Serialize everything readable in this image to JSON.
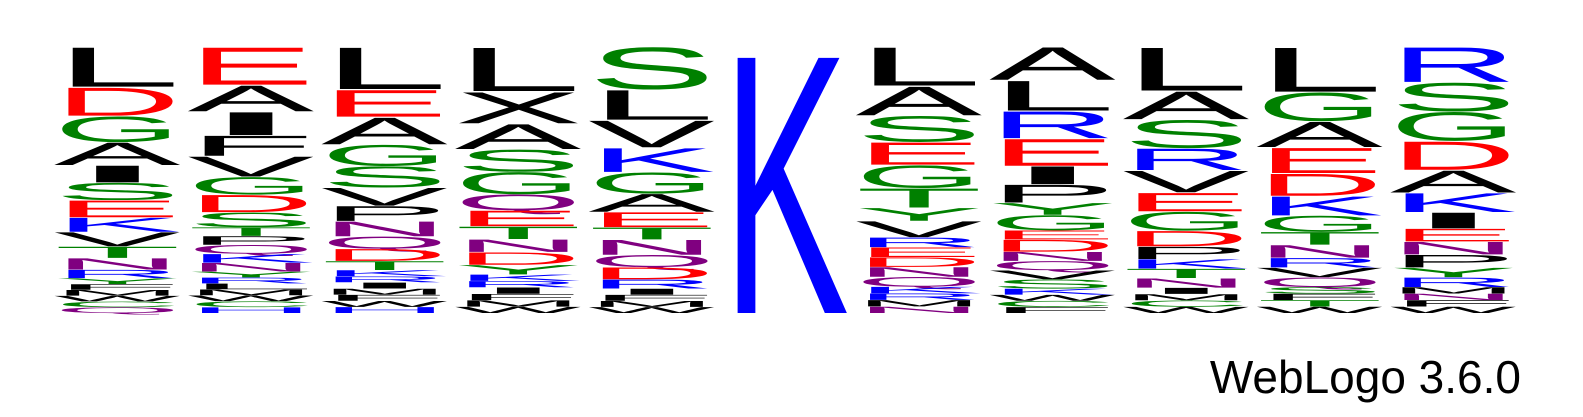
{
  "chart_data": {
    "type": "sequence_logo",
    "colors": {
      "L": "#000000",
      "A": "#000000",
      "V": "#000000",
      "I": "#000000",
      "M": "#000000",
      "F": "#000000",
      "W": "#000000",
      "P": "#000000",
      "D": "#ff0000",
      "E": "#ff0000",
      "G": "#008000",
      "S": "#008000",
      "T": "#008000",
      "Y": "#008000",
      "C": "#008000",
      "K": "#0000ff",
      "R": "#0000ff",
      "H": "#0000ff",
      "N": "#800080",
      "Q": "#800080"
    },
    "positions": [
      [
        [
          "L",
          14
        ],
        [
          "D",
          10
        ],
        [
          "G",
          9
        ],
        [
          "A",
          8
        ],
        [
          "I",
          6
        ],
        [
          "S",
          6
        ],
        [
          "E",
          6
        ],
        [
          "K",
          5
        ],
        [
          "V",
          5
        ],
        [
          "T",
          4
        ],
        [
          "N",
          4
        ],
        [
          "R",
          3
        ],
        [
          "Y",
          2
        ],
        [
          "F",
          2
        ],
        [
          "M",
          2
        ],
        [
          "W",
          2
        ],
        [
          "C",
          2
        ],
        [
          "Q",
          2
        ]
      ],
      [
        [
          "E",
          13
        ],
        [
          "A",
          9
        ],
        [
          "I",
          8
        ],
        [
          "F",
          7
        ],
        [
          "V",
          7
        ],
        [
          "G",
          6
        ],
        [
          "D",
          6
        ],
        [
          "S",
          5
        ],
        [
          "T",
          3
        ],
        [
          "P",
          3
        ],
        [
          "Q",
          3
        ],
        [
          "K",
          3
        ],
        [
          "N",
          3
        ],
        [
          "Y",
          2
        ],
        [
          "R",
          2
        ],
        [
          "L",
          2
        ],
        [
          "M",
          2
        ],
        [
          "W",
          2
        ],
        [
          "C",
          2
        ],
        [
          "H",
          2
        ]
      ],
      [
        [
          "L",
          14
        ],
        [
          "E",
          9
        ],
        [
          "A",
          9
        ],
        [
          "G",
          7
        ],
        [
          "S",
          7
        ],
        [
          "V",
          6
        ],
        [
          "P",
          5
        ],
        [
          "N",
          5
        ],
        [
          "Q",
          4
        ],
        [
          "D",
          4
        ],
        [
          "T",
          3
        ],
        [
          "K",
          2
        ],
        [
          "R",
          2
        ],
        [
          "I",
          2
        ],
        [
          "M",
          2
        ],
        [
          "F",
          2
        ],
        [
          "W",
          2
        ],
        [
          "H",
          2
        ]
      ],
      [
        [
          "L",
          14
        ],
        [
          "X",
          10
        ],
        [
          "A",
          8
        ],
        [
          "S",
          7
        ],
        [
          "G",
          7
        ],
        [
          "Q",
          5
        ],
        [
          "E",
          5
        ],
        [
          "T",
          4
        ],
        [
          "N",
          4
        ],
        [
          "D",
          4
        ],
        [
          "Y",
          3
        ],
        [
          "K",
          2
        ],
        [
          "R",
          2
        ],
        [
          "I",
          2
        ],
        [
          "F",
          2
        ],
        [
          "M",
          2
        ],
        [
          "W",
          2
        ]
      ],
      [
        [
          "S",
          14
        ],
        [
          "L",
          10
        ],
        [
          "V",
          9
        ],
        [
          "K",
          8
        ],
        [
          "G",
          7
        ],
        [
          "A",
          6
        ],
        [
          "E",
          5
        ],
        [
          "T",
          4
        ],
        [
          "N",
          5
        ],
        [
          "Q",
          4
        ],
        [
          "D",
          4
        ],
        [
          "R",
          3
        ],
        [
          "I",
          2
        ],
        [
          "F",
          2
        ],
        [
          "M",
          2
        ],
        [
          "W",
          2
        ]
      ],
      [
        [
          "K",
          100
        ]
      ],
      [
        [
          "L",
          12
        ],
        [
          "A",
          9
        ],
        [
          "S",
          8
        ],
        [
          "E",
          7
        ],
        [
          "G",
          7
        ],
        [
          "T",
          6
        ],
        [
          "Y",
          4
        ],
        [
          "V",
          5
        ],
        [
          "R",
          3
        ],
        [
          "E",
          3
        ],
        [
          "D",
          3
        ],
        [
          "N",
          3
        ],
        [
          "Q",
          3
        ],
        [
          "K",
          2
        ],
        [
          "R",
          2
        ],
        [
          "M",
          2
        ],
        [
          "N",
          2
        ]
      ],
      [
        [
          "A",
          11
        ],
        [
          "L",
          10
        ],
        [
          "R",
          9
        ],
        [
          "E",
          9
        ],
        [
          "I",
          6
        ],
        [
          "P",
          6
        ],
        [
          "Y",
          4
        ],
        [
          "G",
          5
        ],
        [
          "E",
          3
        ],
        [
          "D",
          4
        ],
        [
          "N",
          3
        ],
        [
          "Q",
          3
        ],
        [
          "V",
          3
        ],
        [
          "S",
          3
        ],
        [
          "K",
          2
        ],
        [
          "W",
          2
        ],
        [
          "C",
          2
        ],
        [
          "F",
          2
        ]
      ],
      [
        [
          "L",
          14
        ],
        [
          "A",
          9
        ],
        [
          "S",
          9
        ],
        [
          "R",
          7
        ],
        [
          "V",
          7
        ],
        [
          "E",
          6
        ],
        [
          "G",
          6
        ],
        [
          "D",
          5
        ],
        [
          "P",
          4
        ],
        [
          "K",
          3
        ],
        [
          "T",
          3
        ],
        [
          "N",
          3
        ],
        [
          "I",
          2
        ],
        [
          "M",
          2
        ],
        [
          "C",
          2
        ],
        [
          "W",
          2
        ]
      ],
      [
        [
          "L",
          14
        ],
        [
          "G",
          9
        ],
        [
          "A",
          8
        ],
        [
          "E",
          8
        ],
        [
          "D",
          7
        ],
        [
          "K",
          6
        ],
        [
          "G",
          5
        ],
        [
          "T",
          4
        ],
        [
          "N",
          4
        ],
        [
          "R",
          3
        ],
        [
          "V",
          3
        ],
        [
          "Q",
          3
        ],
        [
          "S",
          2
        ],
        [
          "F",
          2
        ],
        [
          "T",
          2
        ],
        [
          "W",
          2
        ]
      ],
      [
        [
          "R",
          11
        ],
        [
          "S",
          9
        ],
        [
          "G",
          9
        ],
        [
          "D",
          9
        ],
        [
          "A",
          7
        ],
        [
          "K",
          6
        ],
        [
          "I",
          5
        ],
        [
          "E",
          4
        ],
        [
          "N",
          4
        ],
        [
          "P",
          4
        ],
        [
          "Y",
          3
        ],
        [
          "R",
          3
        ],
        [
          "M",
          2
        ],
        [
          "N",
          2
        ],
        [
          "F",
          2
        ],
        [
          "W",
          2
        ]
      ]
    ]
  },
  "footer": "WebLogo 3.6.0"
}
